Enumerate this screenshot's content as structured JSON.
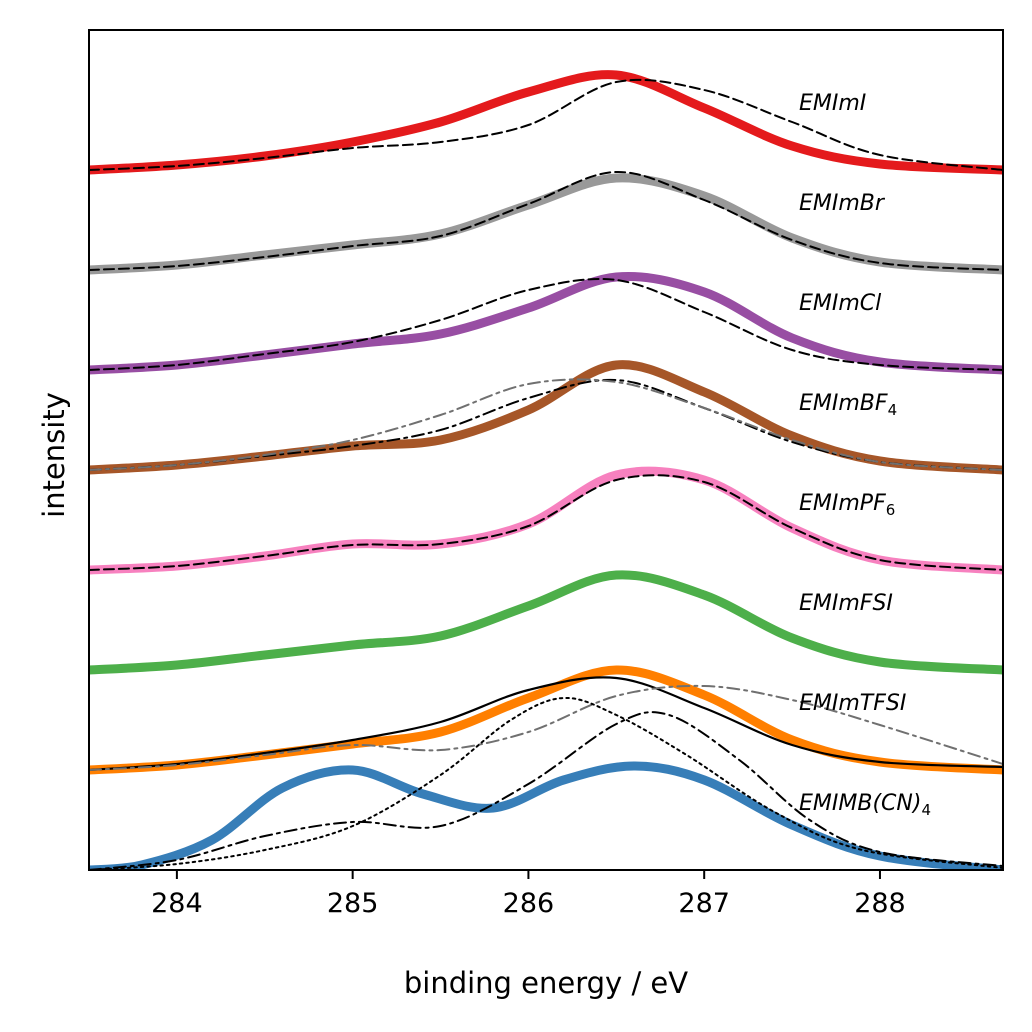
{
  "chart_data": {
    "type": "line",
    "title": "",
    "xlabel": "binding energy / eV",
    "ylabel": "intensity",
    "xlim": [
      283.5,
      288.7
    ],
    "ylim": [
      0,
      8.4
    ],
    "xticks": [
      284,
      285,
      286,
      287,
      288
    ],
    "yticks_visible": false,
    "grid": false,
    "legend": "none (series labelled inline on the right)",
    "colors": {
      "EMImI": "#e41a1c",
      "EMImBr": "#999999",
      "EMImCl": "#984ea3",
      "EMImBF4": "#a65628",
      "EMImPF6": "#f781bf",
      "EMImFSI": "#4daf4a",
      "EMImTFSI": "#ff7f00",
      "EMIMB(CN)4": "#377eb8"
    },
    "series": [
      {
        "name": "EMImI",
        "label_main": "EMImI",
        "label_sub": "",
        "color": "#e41a1c",
        "offset": 7.0,
        "x": [
          283.5,
          284.0,
          284.5,
          285.0,
          285.5,
          286.0,
          286.5,
          287.0,
          287.5,
          288.0,
          288.7
        ],
        "y": [
          0.0,
          0.05,
          0.14,
          0.28,
          0.48,
          0.78,
          0.95,
          0.62,
          0.24,
          0.06,
          0.0
        ]
      },
      {
        "name": "EMImI (fit)",
        "label_main": "",
        "label_sub": "",
        "color": "#000000",
        "dash": "dashed",
        "offset": 7.0,
        "x": [
          283.5,
          284.0,
          284.5,
          285.0,
          285.5,
          286.0,
          286.5,
          287.0,
          287.5,
          288.0,
          288.7
        ],
        "y": [
          0.0,
          0.04,
          0.12,
          0.22,
          0.28,
          0.45,
          0.88,
          0.8,
          0.48,
          0.15,
          0.0
        ]
      },
      {
        "name": "EMImBr",
        "label_main": "EMImBr",
        "label_sub": "",
        "color": "#999999",
        "offset": 6.0,
        "x": [
          283.5,
          284.0,
          284.5,
          285.0,
          285.5,
          286.0,
          286.5,
          287.0,
          287.5,
          288.0,
          288.7
        ],
        "y": [
          0.0,
          0.05,
          0.15,
          0.25,
          0.36,
          0.65,
          0.92,
          0.74,
          0.32,
          0.08,
          0.0
        ]
      },
      {
        "name": "EMImBr (fit)",
        "label_main": "",
        "label_sub": "",
        "color": "#000000",
        "dash": "dashed",
        "offset": 6.0,
        "x": [
          283.5,
          284.0,
          284.5,
          285.0,
          285.5,
          286.0,
          286.5,
          287.0,
          287.5,
          288.0,
          288.7
        ],
        "y": [
          0.0,
          0.04,
          0.13,
          0.24,
          0.34,
          0.66,
          0.98,
          0.7,
          0.3,
          0.07,
          0.0
        ]
      },
      {
        "name": "EMImCl",
        "label_main": "EMImCl",
        "label_sub": "",
        "color": "#984ea3",
        "offset": 5.0,
        "x": [
          283.5,
          284.0,
          284.5,
          285.0,
          285.5,
          286.0,
          286.5,
          287.0,
          287.5,
          288.0,
          288.7
        ],
        "y": [
          0.0,
          0.05,
          0.15,
          0.26,
          0.36,
          0.62,
          0.93,
          0.78,
          0.32,
          0.08,
          0.0
        ]
      },
      {
        "name": "EMImCl (fit)",
        "label_main": "",
        "label_sub": "",
        "color": "#000000",
        "dash": "dashed",
        "offset": 5.0,
        "x": [
          283.5,
          284.0,
          284.5,
          285.0,
          285.5,
          286.0,
          286.5,
          287.0,
          287.5,
          288.0,
          288.7
        ],
        "y": [
          0.0,
          0.05,
          0.16,
          0.28,
          0.5,
          0.8,
          0.9,
          0.58,
          0.2,
          0.05,
          0.0
        ]
      },
      {
        "name": "EMImBF4",
        "label_main": "EMImBF",
        "label_sub": "4",
        "color": "#a65628",
        "offset": 4.0,
        "x": [
          283.5,
          284.0,
          284.5,
          285.0,
          285.5,
          286.0,
          286.5,
          287.0,
          287.5,
          288.0,
          288.7
        ],
        "y": [
          0.0,
          0.05,
          0.14,
          0.24,
          0.3,
          0.6,
          1.05,
          0.78,
          0.34,
          0.09,
          0.0
        ]
      },
      {
        "name": "EMImBF4 (fit)",
        "label_main": "",
        "label_sub": "",
        "color": "#000000",
        "dash": "dashdot",
        "offset": 4.0,
        "x": [
          283.5,
          284.0,
          284.5,
          285.0,
          285.5,
          286.0,
          286.5,
          287.0,
          287.5,
          288.0,
          288.7
        ],
        "y": [
          0.0,
          0.05,
          0.14,
          0.24,
          0.4,
          0.72,
          0.9,
          0.62,
          0.28,
          0.08,
          0.0
        ]
      },
      {
        "name": "EMImBF4 (fit 2)",
        "label_main": "",
        "label_sub": "",
        "color": "#707070",
        "dash": "dashdot",
        "offset": 4.0,
        "x": [
          283.5,
          284.0,
          284.5,
          285.0,
          285.5,
          286.0,
          286.5,
          287.0,
          287.5,
          288.0,
          288.7
        ],
        "y": [
          0.0,
          0.05,
          0.15,
          0.3,
          0.55,
          0.86,
          0.88,
          0.62,
          0.3,
          0.08,
          0.0
        ]
      },
      {
        "name": "EMImPF6",
        "label_main": "EMImPF",
        "label_sub": "6",
        "color": "#f781bf",
        "offset": 3.0,
        "x": [
          283.5,
          284.0,
          284.5,
          285.0,
          285.5,
          286.0,
          286.5,
          287.0,
          287.5,
          288.0,
          288.7
        ],
        "y": [
          0.0,
          0.04,
          0.14,
          0.26,
          0.26,
          0.46,
          0.95,
          0.9,
          0.42,
          0.1,
          0.0
        ]
      },
      {
        "name": "EMImPF6 (fit)",
        "label_main": "",
        "label_sub": "",
        "color": "#000000",
        "dash": "dashed",
        "offset": 3.0,
        "x": [
          283.5,
          284.0,
          284.5,
          285.0,
          285.5,
          286.0,
          286.5,
          287.0,
          287.5,
          288.0,
          288.7
        ],
        "y": [
          0.0,
          0.04,
          0.14,
          0.25,
          0.26,
          0.44,
          0.9,
          0.88,
          0.42,
          0.1,
          0.0
        ]
      },
      {
        "name": "EMImFSI",
        "label_main": "EMImFSI",
        "label_sub": "",
        "color": "#4daf4a",
        "offset": 2.0,
        "x": [
          283.5,
          284.0,
          284.5,
          285.0,
          285.5,
          286.0,
          286.5,
          287.0,
          287.5,
          288.0,
          288.7
        ],
        "y": [
          0.0,
          0.05,
          0.15,
          0.25,
          0.34,
          0.64,
          0.95,
          0.75,
          0.32,
          0.08,
          0.0
        ]
      },
      {
        "name": "EMImTFSI",
        "label_main": "EMImTFSI",
        "label_sub": "",
        "color": "#ff7f00",
        "offset": 1.0,
        "x": [
          283.5,
          284.0,
          284.5,
          285.0,
          285.5,
          286.0,
          286.5,
          287.0,
          287.5,
          288.0,
          288.7
        ],
        "y": [
          0.0,
          0.05,
          0.15,
          0.26,
          0.38,
          0.72,
          1.0,
          0.75,
          0.3,
          0.08,
          0.0
        ]
      },
      {
        "name": "EMImTFSI (fit)",
        "label_main": "",
        "label_sub": "",
        "color": "#000000",
        "dash": "solid-thin",
        "offset": 1.0,
        "x": [
          283.5,
          284.0,
          284.5,
          285.0,
          285.5,
          286.0,
          286.5,
          287.0,
          287.5,
          288.0,
          288.7
        ],
        "y": [
          0.0,
          0.06,
          0.17,
          0.3,
          0.48,
          0.8,
          0.92,
          0.62,
          0.25,
          0.08,
          0.03
        ]
      },
      {
        "name": "EMImTFSI (fit 2)",
        "label_main": "",
        "label_sub": "",
        "color": "#707070",
        "dash": "dashdot",
        "offset": 1.0,
        "x": [
          283.5,
          284.0,
          284.5,
          285.0,
          285.5,
          286.0,
          286.5,
          287.0,
          287.5,
          288.0,
          288.7
        ],
        "y": [
          0.0,
          0.05,
          0.15,
          0.25,
          0.2,
          0.38,
          0.74,
          0.84,
          0.7,
          0.45,
          0.06
        ]
      },
      {
        "name": "EMIMB(CN)4",
        "label_main": "EMIMB(CN)",
        "label_sub": "4",
        "color": "#377eb8",
        "offset": 0.0,
        "x": [
          283.5,
          283.8,
          284.2,
          284.6,
          285.0,
          285.4,
          285.8,
          286.2,
          286.6,
          287.0,
          287.5,
          288.0,
          288.7
        ],
        "y": [
          0.0,
          0.05,
          0.3,
          0.82,
          1.0,
          0.76,
          0.62,
          0.9,
          1.04,
          0.9,
          0.45,
          0.14,
          0.0
        ]
      },
      {
        "name": "EMIMB(CN)4 (fit)",
        "label_main": "",
        "label_sub": "",
        "color": "#000000",
        "dash": "dashdot",
        "offset": 0.0,
        "x": [
          283.5,
          284.0,
          284.5,
          285.0,
          285.5,
          286.0,
          286.5,
          286.8,
          287.2,
          287.6,
          288.0,
          288.7
        ],
        "y": [
          0.0,
          0.1,
          0.34,
          0.48,
          0.44,
          0.86,
          1.46,
          1.55,
          1.1,
          0.5,
          0.18,
          0.04
        ]
      },
      {
        "name": "EMIMB(CN)4 (fit 2)",
        "label_main": "",
        "label_sub": "",
        "color": "#000000",
        "dash": "dotted",
        "offset": 0.0,
        "x": [
          283.5,
          284.0,
          284.5,
          285.0,
          285.5,
          285.9,
          286.2,
          286.5,
          286.9,
          287.4,
          287.9,
          288.7
        ],
        "y": [
          0.0,
          0.06,
          0.2,
          0.44,
          0.95,
          1.5,
          1.72,
          1.55,
          1.15,
          0.58,
          0.2,
          0.02
        ]
      }
    ]
  }
}
